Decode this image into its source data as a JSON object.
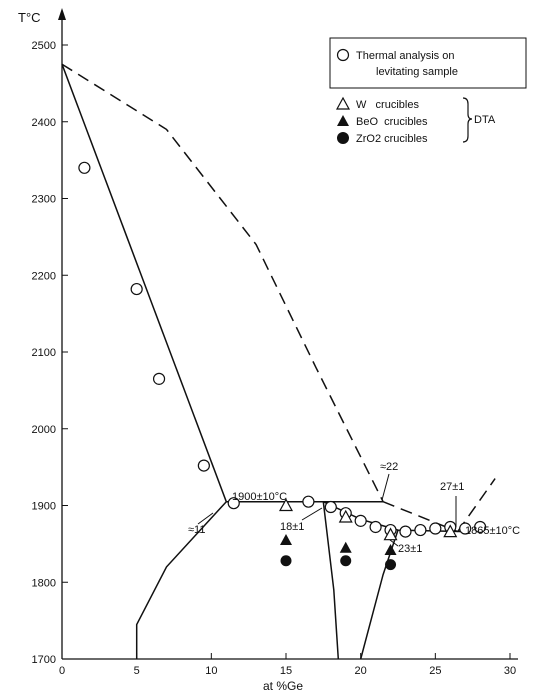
{
  "chart_data": {
    "type": "scatter",
    "title": "",
    "xlabel": "at %Ge",
    "ylabel": "T°C",
    "xlim": [
      0,
      30
    ],
    "ylim": [
      1700,
      2500
    ],
    "x_ticks": [
      0,
      5,
      10,
      15,
      20,
      25,
      30
    ],
    "y_ticks": [
      1700,
      1800,
      1900,
      2000,
      2100,
      2200,
      2300,
      2400,
      2500
    ],
    "grid": false,
    "legend": {
      "placement": "top-right",
      "circle_label_line1": "Thermal analysis on",
      "circle_label_line2": "levitating sample",
      "w_label": "W   crucibles",
      "beo_label": "BeO  crucibles",
      "zro2_label": "ZrO2 crucibles",
      "group_label": "DTA"
    },
    "annotations": {
      "eutectic1_label": "1900±10°C",
      "eutectic2_label": "1865±10°C",
      "approx11": "≈11",
      "approx22": "≈22",
      "label18": "18±1",
      "label23": "23±1",
      "label27": "27±1"
    },
    "series": [
      {
        "name": "Thermal analysis on levitating sample",
        "marker": "open-circle",
        "points": [
          [
            1.5,
            2340
          ],
          [
            5,
            2182
          ],
          [
            6.5,
            2065
          ],
          [
            9.5,
            1952
          ],
          [
            11.5,
            1903
          ],
          [
            16.5,
            1905
          ],
          [
            18,
            1898
          ],
          [
            19,
            1890
          ],
          [
            20,
            1880
          ],
          [
            21,
            1872
          ],
          [
            22,
            1868
          ],
          [
            23,
            1866
          ],
          [
            24,
            1868
          ],
          [
            25,
            1870
          ],
          [
            26,
            1872
          ],
          [
            27,
            1870
          ],
          [
            28,
            1872
          ]
        ]
      },
      {
        "name": "W crucibles",
        "marker": "open-triangle",
        "points": [
          [
            15,
            1900
          ],
          [
            19,
            1885
          ],
          [
            22,
            1862
          ],
          [
            26,
            1866
          ]
        ]
      },
      {
        "name": "BeO crucibles",
        "marker": "filled-triangle",
        "points": [
          [
            15,
            1855
          ],
          [
            19,
            1845
          ],
          [
            22,
            1842
          ]
        ]
      },
      {
        "name": "ZrO2 crucibles",
        "marker": "filled-circle",
        "points": [
          [
            15,
            1828
          ],
          [
            19,
            1828
          ],
          [
            22,
            1823
          ]
        ]
      }
    ],
    "lines": {
      "solid": [
        [
          [
            0,
            2475
          ],
          [
            11,
            1905
          ]
        ],
        [
          [
            11,
            1905
          ],
          [
            17.5,
            1905
          ]
        ],
        [
          [
            17.5,
            1905
          ],
          [
            20,
            1882
          ],
          [
            22.5,
            1868
          ],
          [
            27,
            1866
          ]
        ],
        [
          [
            17.5,
            1905
          ],
          [
            18.2,
            1790
          ],
          [
            18.5,
            1700
          ]
        ],
        [
          [
            22.5,
            1868
          ],
          [
            21.5,
            1810
          ],
          [
            20,
            1700
          ]
        ],
        [
          [
            5,
            1700
          ],
          [
            5,
            1745
          ],
          [
            7,
            1820
          ],
          [
            11,
            1905
          ]
        ],
        [
          [
            11,
            1905
          ],
          [
            21.5,
            1905
          ]
        ]
      ],
      "dashed": [
        [
          [
            0,
            2475
          ],
          [
            7,
            2390
          ],
          [
            13,
            2240
          ],
          [
            17,
            2080
          ],
          [
            21.5,
            1905
          ]
        ],
        [
          [
            0,
            2475
          ],
          [
            0,
            2475
          ]
        ],
        [
          [
            21.5,
            1905
          ],
          [
            26.5,
            1866
          ]
        ],
        [
          [
            26.5,
            1866
          ],
          [
            29,
            1935
          ]
        ]
      ]
    },
    "colors": {
      "ink": "#111111",
      "background": "#ffffff"
    }
  }
}
